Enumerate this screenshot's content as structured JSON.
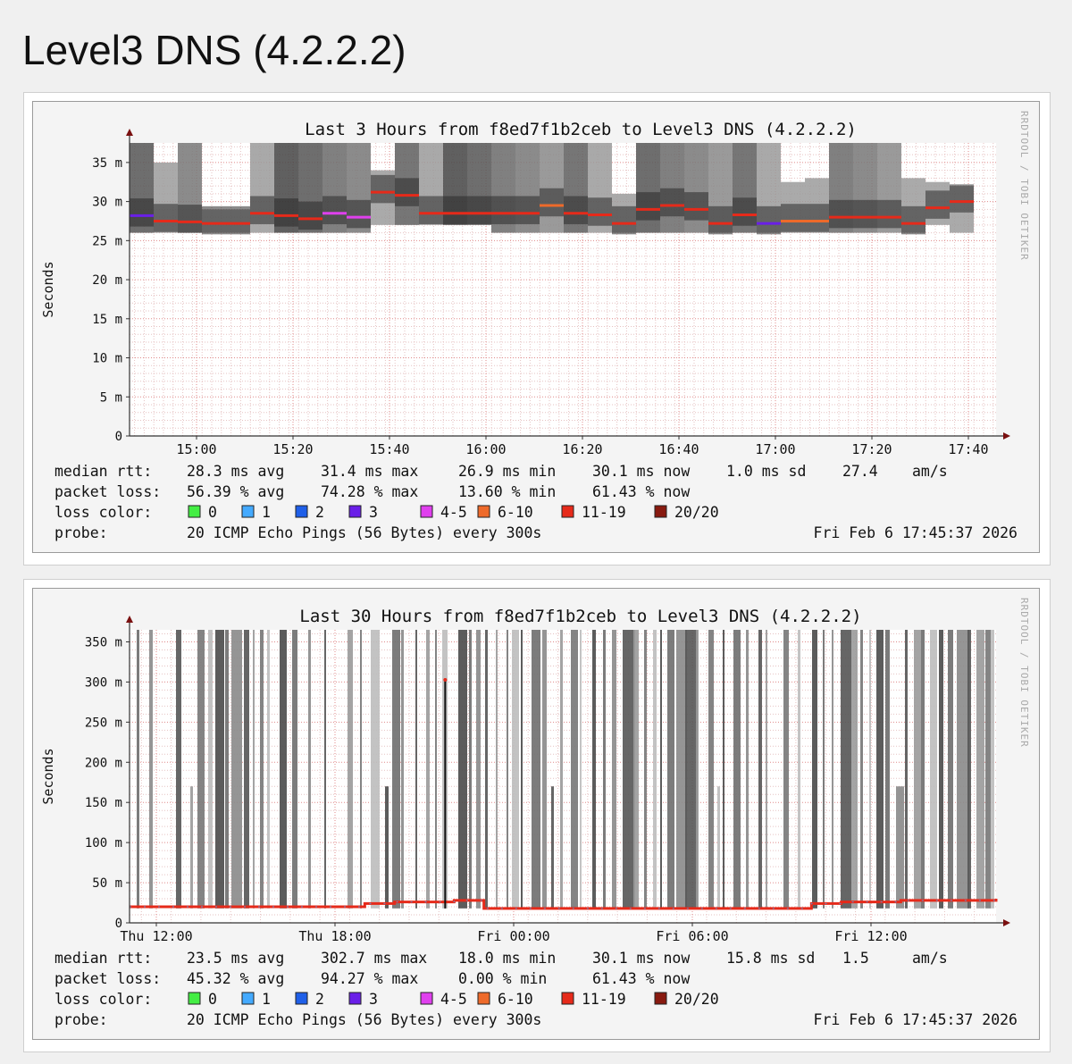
{
  "page": {
    "title": "Level3 DNS (4.2.2.2)"
  },
  "graphs": [
    {
      "title": "Last 3 Hours from f8ed7f1b2ceb to Level3 DNS (4.2.2.2)",
      "watermark": "RRDTOOL / TOBI OETIKER",
      "ylabel": "Seconds",
      "y_ticks": [
        "0",
        "5 m",
        "10 m",
        "15 m",
        "20 m",
        "25 m",
        "30 m",
        "35 m"
      ],
      "x_ticks": [
        "15:00",
        "15:20",
        "15:40",
        "16:00",
        "16:20",
        "16:40",
        "17:00",
        "17:20",
        "17:40"
      ],
      "stats": {
        "rtt_label": "median rtt:",
        "rtt": [
          "28.3 ms avg",
          "31.4 ms max",
          "26.9 ms min",
          "30.1 ms now",
          "1.0 ms sd",
          "27.4",
          "am/s"
        ],
        "loss_label": "packet loss:",
        "loss": [
          "56.39 % avg",
          "74.28 % max",
          "13.60 % min",
          "61.43 % now"
        ],
        "color_label": "loss color:",
        "probe_label": "probe:",
        "probe": "20 ICMP Echo Pings (56 Bytes) every 300s",
        "timestamp": "Fri Feb  6 17:45:37 2026"
      }
    },
    {
      "title": "Last 30 Hours from f8ed7f1b2ceb to Level3 DNS (4.2.2.2)",
      "watermark": "RRDTOOL / TOBI OETIKER",
      "ylabel": "Seconds",
      "y_ticks": [
        "0",
        "50 m",
        "100 m",
        "150 m",
        "200 m",
        "250 m",
        "300 m",
        "350 m"
      ],
      "x_ticks": [
        "Thu 12:00",
        "Thu 18:00",
        "Fri 00:00",
        "Fri 06:00",
        "Fri 12:00"
      ],
      "stats": {
        "rtt_label": "median rtt:",
        "rtt": [
          "23.5 ms avg",
          "302.7 ms max",
          "18.0 ms min",
          "30.1 ms now",
          "15.8 ms sd",
          "1.5",
          "am/s"
        ],
        "loss_label": "packet loss:",
        "loss": [
          "45.32 % avg",
          "94.27 % max",
          "0.00 % min",
          "61.43 % now"
        ],
        "color_label": "loss color:",
        "probe_label": "probe:",
        "probe": "20 ICMP Echo Pings (56 Bytes) every 300s",
        "timestamp": "Fri Feb  6 17:45:37 2026"
      }
    }
  ],
  "legend": [
    {
      "label": "0",
      "color": "#44ee44"
    },
    {
      "label": "1",
      "color": "#44aaff"
    },
    {
      "label": "2",
      "color": "#1f5fe8"
    },
    {
      "label": "3",
      "color": "#6a1fe8"
    },
    {
      "label": "4-5",
      "color": "#e040ee"
    },
    {
      "label": "6-10",
      "color": "#ee6a2a"
    },
    {
      "label": "11-19",
      "color": "#e62a1a"
    },
    {
      "label": "20/20",
      "color": "#881a10"
    }
  ],
  "chart_data": [
    {
      "type": "line",
      "title": "Last 3 Hours from f8ed7f1b2ceb to Level3 DNS (4.2.2.2)",
      "ylabel": "Seconds",
      "unit": "ms",
      "ylim": [
        0,
        37.5
      ],
      "x_ticks": [
        "15:00",
        "15:20",
        "15:40",
        "16:00",
        "16:20",
        "16:40",
        "17:00",
        "17:20",
        "17:40"
      ],
      "grid": true,
      "series": [
        {
          "name": "median rtt",
          "x": [
            "14:50",
            "14:55",
            "15:00",
            "15:05",
            "15:10",
            "15:15",
            "15:20",
            "15:25",
            "15:30",
            "15:35",
            "15:40",
            "15:45",
            "15:50",
            "15:55",
            "16:00",
            "16:05",
            "16:10",
            "16:15",
            "16:20",
            "16:25",
            "16:30",
            "16:35",
            "16:40",
            "16:45",
            "16:50",
            "16:55",
            "17:00",
            "17:05",
            "17:10",
            "17:15",
            "17:20",
            "17:25",
            "17:30",
            "17:35",
            "17:40"
          ],
          "values": [
            28.2,
            27.5,
            27.4,
            27.2,
            27.2,
            28.5,
            28.2,
            27.8,
            28.5,
            28.0,
            31.2,
            30.8,
            28.5,
            28.5,
            28.5,
            28.5,
            28.5,
            29.5,
            28.5,
            28.3,
            27.2,
            29.0,
            29.5,
            29.0,
            27.2,
            28.3,
            27.2,
            27.5,
            27.5,
            28.0,
            28.0,
            28.0,
            27.2,
            29.2,
            30.0
          ],
          "loss_bucket": [
            "3",
            "11-19",
            "11-19",
            "11-19",
            "11-19",
            "11-19",
            "11-19",
            "11-19",
            "4-5",
            "4-5",
            "11-19",
            "11-19",
            "11-19",
            "11-19",
            "11-19",
            "11-19",
            "11-19",
            "6-10",
            "11-19",
            "11-19",
            "11-19",
            "11-19",
            "11-19",
            "11-19",
            "11-19",
            "11-19",
            "3",
            "6-10",
            "6-10",
            "11-19",
            "11-19",
            "11-19",
            "11-19",
            "11-19",
            "11-19"
          ],
          "smoke_min": [
            26,
            26,
            26,
            26,
            26,
            26,
            26,
            26,
            26,
            26,
            27,
            27,
            27,
            27,
            27,
            26,
            26,
            26,
            26,
            26,
            26,
            26,
            26,
            26,
            26,
            26,
            26,
            26,
            26,
            26,
            26,
            26,
            26,
            27,
            26
          ],
          "smoke_max": [
            37.5,
            35,
            37.5,
            29,
            29,
            37.5,
            37.5,
            37.5,
            37.5,
            37.5,
            34,
            37.5,
            37.5,
            37.5,
            37.5,
            37.5,
            37.5,
            37.5,
            37.5,
            37.5,
            31,
            37.5,
            37.5,
            37.5,
            37.5,
            37.5,
            37.5,
            32.5,
            33,
            37.5,
            37.5,
            37.5,
            33,
            32.5,
            32
          ]
        }
      ]
    },
    {
      "type": "line",
      "title": "Last 30 Hours from f8ed7f1b2ceb to Level3 DNS (4.2.2.2)",
      "ylabel": "Seconds",
      "unit": "ms",
      "ylim": [
        0,
        365
      ],
      "x_ticks": [
        "Thu 12:00",
        "Thu 18:00",
        "Fri 00:00",
        "Fri 06:00",
        "Fri 12:00"
      ],
      "grid": true,
      "series": [
        {
          "name": "median rtt",
          "x_hours_from_thu_12": [
            0,
            1,
            2,
            3,
            4,
            5,
            6,
            7,
            8,
            9,
            10,
            11,
            12,
            13,
            14,
            15,
            16,
            17,
            18,
            19,
            20,
            21,
            22,
            23,
            24,
            25,
            26,
            27,
            28,
            29
          ],
          "values": [
            20,
            20,
            20,
            20,
            20,
            20,
            20,
            24,
            26,
            26,
            28,
            18,
            18,
            18,
            18,
            18,
            18,
            18,
            18,
            18,
            18,
            18,
            24,
            26,
            26,
            28,
            28,
            28,
            28,
            30
          ],
          "spikes": [
            {
              "x_hours_from_thu_12": 9.7,
              "value": 302.7
            }
          ]
        }
      ]
    }
  ]
}
